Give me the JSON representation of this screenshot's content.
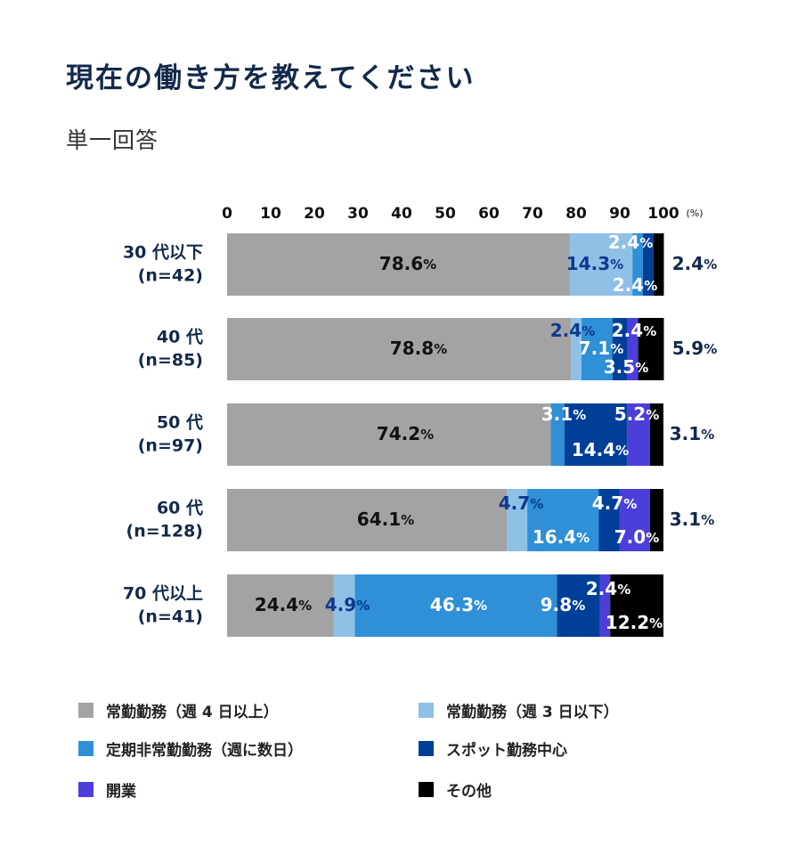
{
  "title": "現在の働き方を教えてください",
  "subtitle": "単一回答",
  "chart_data": {
    "type": "bar",
    "orientation": "horizontal",
    "stacked": true,
    "title": "現在の働き方を教えてください",
    "subtitle": "単一回答",
    "xlim": [
      0,
      100
    ],
    "xticks": [
      "0",
      "10",
      "20",
      "30",
      "40",
      "50",
      "60",
      "70",
      "80",
      "90",
      "100"
    ],
    "xunit": "(%)",
    "grid": false,
    "legend_placement": "bottom",
    "categories": [
      [
        "30 代以下",
        "(n=42)"
      ],
      [
        "40 代",
        "(n=85)"
      ],
      [
        "50 代",
        "(n=97)"
      ],
      [
        "60 代",
        "(n=128)"
      ],
      [
        "70 代以上",
        "(n=41)"
      ]
    ],
    "series": [
      {
        "name": "常勤勤務（週 4 日以上）",
        "color": "#a3a3a3",
        "values": [
          78.6,
          78.8,
          74.2,
          64.1,
          24.4
        ]
      },
      {
        "name": "常勤勤務（週 3 日以下）",
        "color": "#8fc0e6",
        "values": [
          14.3,
          2.4,
          0,
          4.7,
          4.9
        ]
      },
      {
        "name": "定期非常勤勤務（週に数日）",
        "color": "#2f8fd7",
        "values": [
          2.4,
          7.1,
          3.1,
          16.4,
          46.3
        ]
      },
      {
        "name": "スポット勤務中心",
        "color": "#003f98",
        "values": [
          2.4,
          3.5,
          14.4,
          4.7,
          9.8
        ]
      },
      {
        "name": "開業",
        "color": "#4c3fd9",
        "values": [
          0,
          2.4,
          5.2,
          7.0,
          2.4
        ]
      },
      {
        "name": "その他",
        "color": "#000000",
        "values": [
          2.4,
          5.9,
          3.1,
          3.1,
          12.2
        ]
      }
    ]
  }
}
